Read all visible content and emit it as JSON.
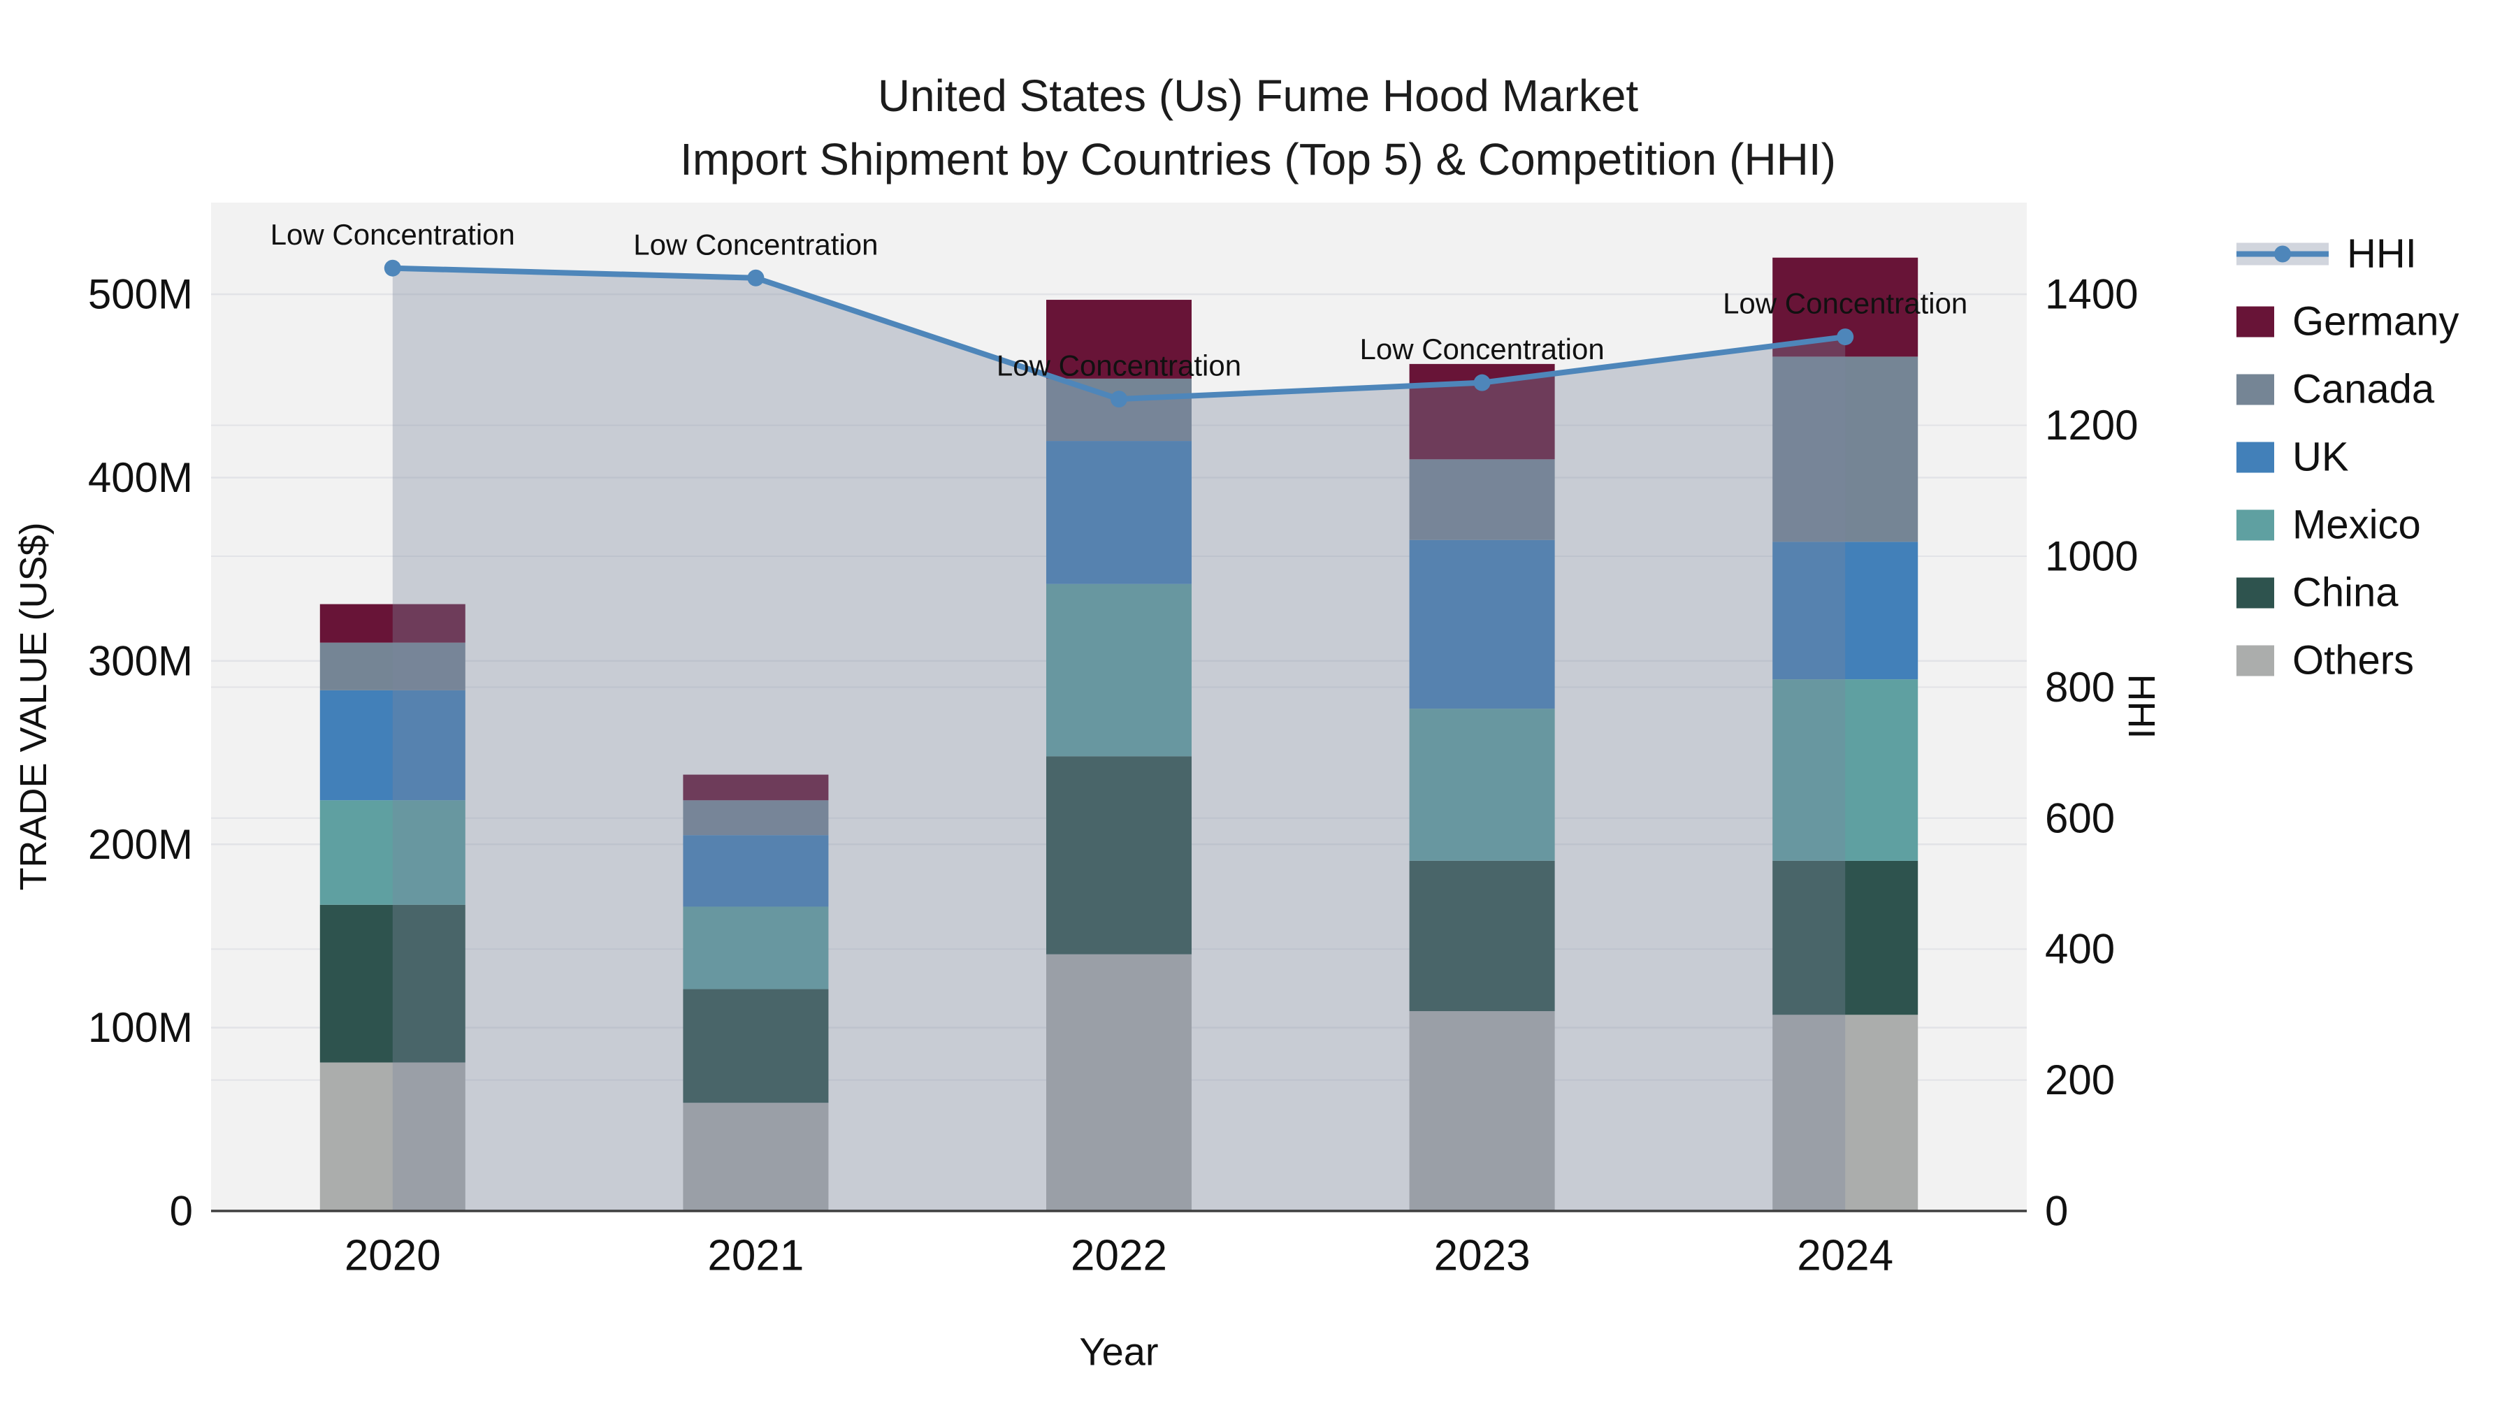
{
  "title": {
    "line1": "United States (Us) Fume Hood Market",
    "line2": "Import Shipment by Countries (Top 5) & Competition (HHI)"
  },
  "chart_data": {
    "type": "combo-stacked-bar-line",
    "categories": [
      "2020",
      "2021",
      "2022",
      "2023",
      "2024"
    ],
    "xlabel": "Year",
    "ylabel_left": "TRADE VALUE (US$)",
    "ylabel_right": "HHI",
    "bar_unit": "M (US$ millions)",
    "bar_series": [
      {
        "name": "Others",
        "color": "#ABADAC",
        "values": [
          81,
          59,
          140,
          109,
          107
        ]
      },
      {
        "name": "China",
        "color": "#2E534E",
        "values": [
          86,
          62,
          108,
          82,
          84
        ]
      },
      {
        "name": "Mexico",
        "color": "#5FA0A1",
        "values": [
          57,
          45,
          94,
          83,
          99
        ]
      },
      {
        "name": "UK",
        "color": "#4280B9",
        "values": [
          60,
          39,
          78,
          92,
          75
        ]
      },
      {
        "name": "Canada",
        "color": "#758595",
        "values": [
          26,
          19,
          34,
          44,
          101
        ]
      },
      {
        "name": "Germany",
        "color": "#681437",
        "values": [
          21,
          14,
          43,
          52,
          54
        ]
      }
    ],
    "bar_totals": [
      331,
      238,
      497,
      462,
      520
    ],
    "line_series": {
      "name": "HHI",
      "color": "#4E86BA",
      "fill_color": "rgba(122,136,159,0.35)",
      "values": [
        1440,
        1425,
        1240,
        1265,
        1335
      ]
    },
    "annotation_label": "Low Concentration",
    "annotations_per_point": [
      true,
      true,
      true,
      true,
      true
    ],
    "yaxis_left": {
      "ticks": [
        "0",
        "100M",
        "200M",
        "300M",
        "400M",
        "500M"
      ],
      "values": [
        0,
        100,
        200,
        300,
        400,
        500
      ],
      "range": [
        0,
        550
      ]
    },
    "yaxis_right": {
      "ticks": [
        "0",
        "200",
        "400",
        "600",
        "800",
        "1000",
        "1200",
        "1400"
      ],
      "values": [
        0,
        200,
        400,
        600,
        800,
        1000,
        1200,
        1400
      ],
      "range": [
        0,
        1540
      ]
    },
    "legend": [
      {
        "label": "HHI",
        "type": "line"
      },
      {
        "label": "Germany",
        "type": "swatch",
        "color": "#681437"
      },
      {
        "label": "Canada",
        "type": "swatch",
        "color": "#758595"
      },
      {
        "label": "UK",
        "type": "swatch",
        "color": "#4280B9"
      },
      {
        "label": "Mexico",
        "type": "swatch",
        "color": "#5FA0A1"
      },
      {
        "label": "China",
        "type": "swatch",
        "color": "#2E534E"
      },
      {
        "label": "Others",
        "type": "swatch",
        "color": "#ABADAC"
      }
    ],
    "grid": true,
    "legend_position": "right"
  },
  "style_colors": {
    "plot_bg": "#F2F2F2",
    "gridline": "#E2E3E7",
    "axis_line": "#3F3F3F",
    "text": "#111111"
  }
}
